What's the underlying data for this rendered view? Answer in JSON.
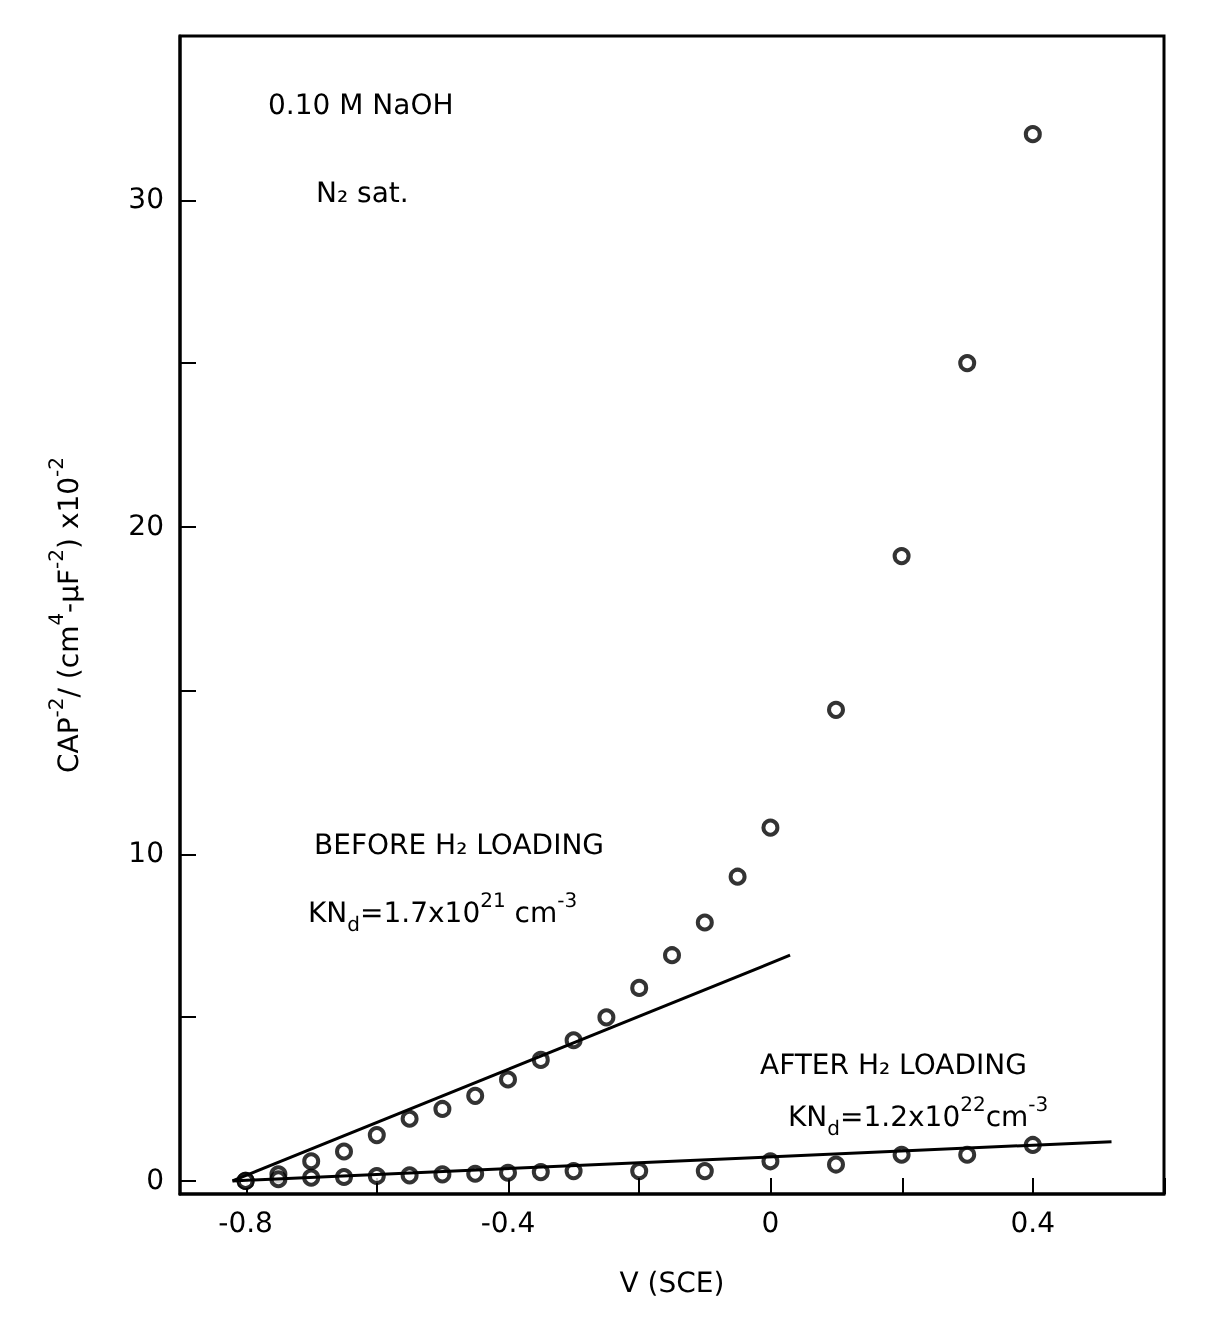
{
  "chart_data": {
    "type": "scatter",
    "xlabel": "V (SCE)",
    "ylabel": "CAP$^{-2}$/ (cm$^{4}$-μF$^{-2}$) x10$^{-2}$",
    "xlim": [
      -0.9,
      0.6
    ],
    "xticks": [
      -0.8,
      {
        "value": -0.6,
        "label": null
      },
      -0.4,
      {
        "value": -0.2,
        "label": null
      },
      0,
      {
        "value": 0.2,
        "label": null
      },
      0.4,
      {
        "value": 0.6,
        "label": null
      }
    ],
    "ylim": [
      -0.4,
      35
    ],
    "yticks": [
      0,
      {
        "value": 5,
        "label": null
      },
      10,
      {
        "value": 15,
        "label": null
      },
      20,
      {
        "value": 25,
        "label": null
      },
      30
    ],
    "grid": false,
    "series": [
      {
        "marker": "circle",
        "color": "#000000",
        "x": [
          -0.8,
          -0.75,
          -0.7,
          -0.65,
          -0.6,
          -0.55,
          -0.5,
          -0.45,
          -0.4,
          -0.35,
          -0.3,
          -0.25,
          -0.2,
          -0.15,
          -0.1,
          -0.05,
          0,
          0.1,
          0.2,
          0.3,
          0.4
        ],
        "values": [
          0,
          0.2,
          0.6,
          0.9,
          1.4,
          1.9,
          2.2,
          2.6,
          3.1,
          3.7,
          4.3,
          5.0,
          5.9,
          6.9,
          7.9,
          9.3,
          10.8,
          14.4,
          19.1,
          25.0,
          32
        ]
      },
      {
        "marker": "circle",
        "color": "#000000",
        "x": [
          -0.8,
          -0.75,
          -0.7,
          -0.65,
          -0.6,
          -0.55,
          -0.5,
          -0.45,
          -0.4,
          -0.35,
          -0.3,
          -0.2,
          -0.1,
          0,
          0.1,
          0.2,
          0.3,
          0.4
        ],
        "values": [
          0,
          0.05,
          0.1,
          0.12,
          0.15,
          0.17,
          0.2,
          0.22,
          0.25,
          0.27,
          0.3,
          0.3,
          0.3,
          0.6,
          0.5,
          0.8,
          0.8,
          1.1
        ]
      },
      {
        "type": "line",
        "marker": "none",
        "line_style": "solid",
        "color": "#000000",
        "x": [
          -0.82,
          0.03
        ],
        "values": [
          0,
          6.9
        ]
      },
      {
        "type": "line",
        "marker": "none",
        "line_style": "solid",
        "color": "#000000",
        "x": [
          -0.82,
          0.52
        ],
        "values": [
          0,
          1.2
        ]
      }
    ],
    "annotations": [
      "0.10 M NaOH",
      "N₂ sat.",
      "BEFORE H₂ LOADING",
      "KN$_{d}$=1.7x10$^{21}$ cm$^{-3}$",
      "AFTER H₂ LOADING",
      "KN$_{d}$=1.2x10$^{22}$cm$^{-3}$"
    ]
  }
}
